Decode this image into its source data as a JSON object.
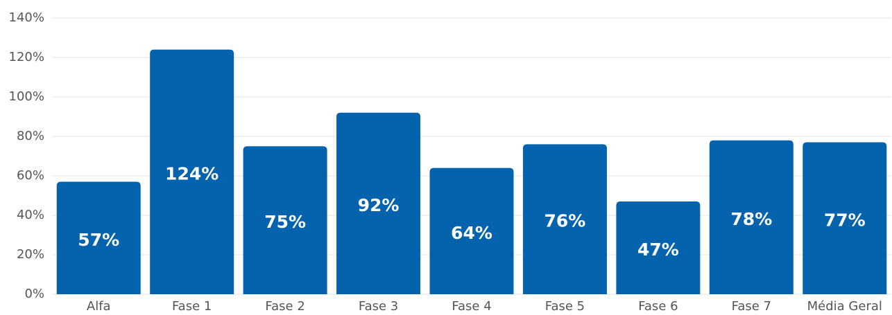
{
  "chart_data": {
    "type": "bar",
    "categories": [
      "Alfa",
      "Fase 1",
      "Fase 2",
      "Fase 3",
      "Fase 4",
      "Fase 5",
      "Fase 6",
      "Fase 7",
      "Média Geral"
    ],
    "values": [
      57,
      124,
      75,
      92,
      64,
      76,
      47,
      78,
      77
    ],
    "value_labels": [
      "57%",
      "124%",
      "75%",
      "92%",
      "64%",
      "76%",
      "47%",
      "78%",
      "77%"
    ],
    "color": "#0563ae",
    "ylim": [
      0,
      140
    ],
    "yticks": [
      {
        "value": 0,
        "label": "0%"
      },
      {
        "value": 20,
        "label": "20%"
      },
      {
        "value": 40,
        "label": "40%"
      },
      {
        "value": 60,
        "label": "60%"
      },
      {
        "value": 80,
        "label": "80%"
      },
      {
        "value": 100,
        "label": "100%"
      },
      {
        "value": 120,
        "label": "120%"
      },
      {
        "value": 140,
        "label": "140%"
      }
    ],
    "grid": true
  }
}
